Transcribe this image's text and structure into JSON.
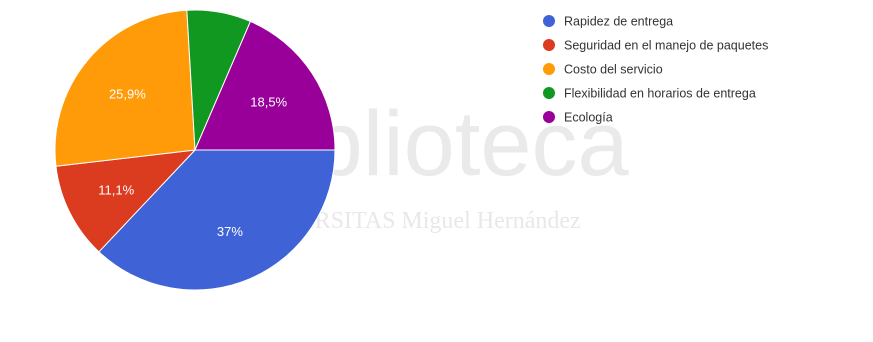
{
  "watermark": {
    "main": "biblioteca",
    "sub": "UNIVERSITAS Miguel Hernández"
  },
  "chart_data": {
    "type": "pie",
    "categories": [
      "Rapidez de entrega",
      "Seguridad en el manejo de paquetes",
      "Costo del servicio",
      "Flexibilidad en horarios de entrega",
      "Ecología"
    ],
    "values": [
      37,
      11.1,
      25.9,
      7.4,
      18.5
    ],
    "labels": [
      "37%",
      "11,1%",
      "25,9%",
      "",
      "18,5%"
    ],
    "colors": [
      "#3f63d6",
      "#db3b1f",
      "#ff9b09",
      "#109820",
      "#990099"
    ],
    "legend_position": "right",
    "start_angle_deg": 90
  }
}
